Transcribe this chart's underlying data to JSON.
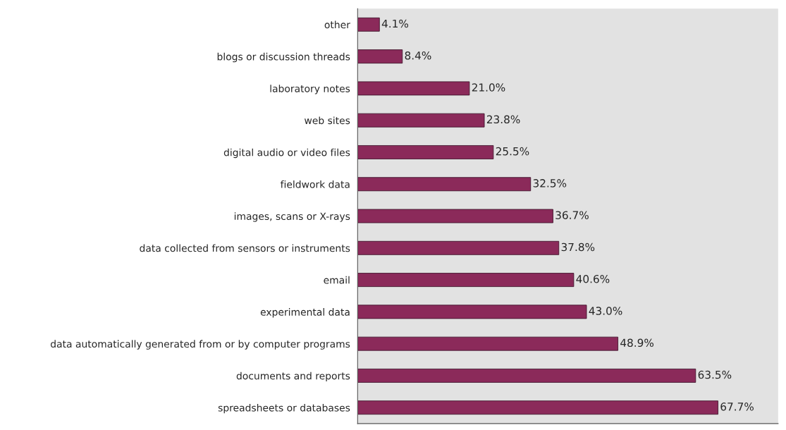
{
  "chart_data": {
    "type": "bar",
    "orientation": "horizontal",
    "categories": [
      "other",
      "blogs or discussion threads",
      "laboratory notes",
      "web sites",
      "digital audio or video files",
      "fieldwork data",
      "images, scans or X-rays",
      "data collected from sensors or instruments",
      "email",
      "experimental data",
      "data automatically generated from or by computer programs",
      "documents and reports",
      "spreadsheets or databases"
    ],
    "values": [
      4.1,
      8.4,
      21.0,
      23.8,
      25.5,
      32.5,
      36.7,
      37.8,
      40.6,
      43.0,
      48.9,
      63.5,
      67.7
    ],
    "value_labels": [
      "4.1%",
      "8.4%",
      "21.0%",
      "23.8%",
      "25.5%",
      "32.5%",
      "36.7%",
      "37.8%",
      "40.6%",
      "43.0%",
      "48.9%",
      "63.5%",
      "67.7%"
    ],
    "color": "#8b2a5a",
    "xlim": [
      0,
      79
    ],
    "tick_labels": "y",
    "grid": false,
    "legend": false
  }
}
